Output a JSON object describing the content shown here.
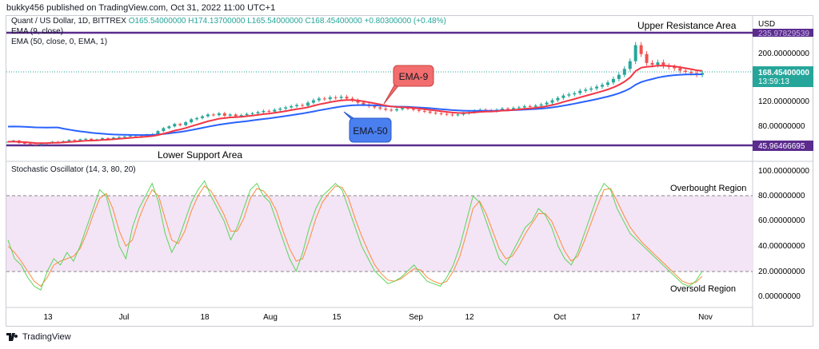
{
  "header": {
    "publisher_line": "bukky456 published on TradingView.com, Oct 31, 2022 11:00 UTC+1"
  },
  "legend": {
    "symbol": "Quant / US Dollar, 1D, BITTREX",
    "o": "O165.54000000",
    "h": "H174.13700000",
    "l": "L165.54000000",
    "c": "C168.45400000",
    "change": "+0.80300000 (+0.48%)",
    "ema9": "EMA (9, close)",
    "ema50": "EMA (50, close, 0, EMA, 1)",
    "stoch": "Stochastic Oscillator (14, 3, 80, 20)"
  },
  "currency": "USD",
  "price_axis": {
    "ticks": [
      "200.00000000",
      "160.00000000",
      "120.00000000",
      "80.00000000"
    ],
    "partial_top": "235.97829539",
    "last_price": "168.45400000",
    "countdown": "13:59:13",
    "support_price": "45.96466695"
  },
  "stoch_axis": {
    "ticks": [
      "100.00000000",
      "80.00000000",
      "60.00000000",
      "40.00000000",
      "20.00000000",
      "0.00000000"
    ]
  },
  "time_axis": {
    "labels": [
      "13",
      "Jul",
      "18",
      "Aug",
      "15",
      "Sep",
      "12",
      "Oct",
      "17",
      "Nov"
    ]
  },
  "annotations": {
    "upper": "Upper Resistance Area",
    "lower": "Lower Support Area",
    "ema9": "EMA-9",
    "ema50": "EMA-50",
    "overbought": "Overbought Region",
    "oversold": "Oversold Region"
  },
  "colors": {
    "up": "#26a69a",
    "down": "#ef5350",
    "ema9": "#f23645",
    "ema50": "#2962ff",
    "level": "#5b2c8e",
    "stoch_k": "#5ad55a",
    "stoch_d": "#ff8a3d",
    "band": "#f3e5f5"
  },
  "footer": {
    "brand": "TradingView"
  },
  "chart_data": {
    "type": "candlestick",
    "price_levels": {
      "upper_resistance": 235.97829539,
      "lower_support": 45.96466695,
      "last": 168.454
    },
    "closes": [
      52,
      54,
      50,
      49,
      48,
      47,
      49,
      50,
      52,
      51,
      53,
      55,
      54,
      56,
      57,
      55,
      56,
      58,
      57,
      59,
      60,
      61,
      62,
      63,
      62,
      64,
      65,
      70,
      75,
      78,
      82,
      80,
      85,
      90,
      92,
      95,
      98,
      97,
      100,
      96,
      98,
      95,
      97,
      99,
      100,
      102,
      104,
      103,
      106,
      108,
      110,
      112,
      114,
      113,
      118,
      122,
      125,
      124,
      127,
      126,
      128,
      125,
      122,
      118,
      115,
      112,
      110,
      108,
      106,
      105,
      107,
      109,
      108,
      106,
      104,
      103,
      101,
      100,
      99,
      98,
      97,
      98,
      100,
      102,
      104,
      106,
      105,
      104,
      106,
      108,
      107,
      109,
      110,
      112,
      111,
      113,
      115,
      118,
      122,
      126,
      130,
      132,
      134,
      138,
      140,
      142,
      145,
      148,
      152,
      158,
      165,
      175,
      188,
      215,
      200,
      185,
      182,
      186,
      180,
      178,
      176,
      172,
      170,
      168,
      165,
      168
    ],
    "ema9_end": 170,
    "ema50_end": 148,
    "stoch_k": [
      45,
      30,
      25,
      15,
      8,
      5,
      20,
      30,
      25,
      35,
      28,
      40,
      55,
      70,
      85,
      80,
      60,
      40,
      30,
      55,
      70,
      80,
      90,
      75,
      50,
      35,
      45,
      60,
      75,
      85,
      92,
      80,
      70,
      60,
      45,
      55,
      70,
      85,
      90,
      80,
      75,
      60,
      45,
      30,
      20,
      35,
      55,
      70,
      80,
      85,
      90,
      85,
      70,
      55,
      40,
      30,
      20,
      15,
      10,
      12,
      15,
      20,
      25,
      18,
      12,
      10,
      8,
      15,
      25,
      40,
      60,
      80,
      75,
      60,
      45,
      30,
      25,
      35,
      45,
      55,
      60,
      70,
      65,
      55,
      40,
      30,
      25,
      35,
      50,
      65,
      80,
      90,
      85,
      70,
      60,
      50,
      45,
      40,
      35,
      30,
      25,
      20,
      15,
      10,
      8,
      12,
      20
    ],
    "stoch_d": [
      40,
      35,
      28,
      20,
      12,
      8,
      15,
      25,
      28,
      30,
      32,
      38,
      50,
      65,
      78,
      82,
      70,
      52,
      40,
      45,
      62,
      75,
      85,
      80,
      62,
      45,
      42,
      52,
      68,
      80,
      88,
      84,
      75,
      65,
      52,
      52,
      62,
      78,
      86,
      84,
      78,
      68,
      52,
      38,
      28,
      30,
      45,
      62,
      75,
      82,
      88,
      87,
      78,
      62,
      48,
      36,
      25,
      18,
      13,
      12,
      14,
      18,
      22,
      21,
      15,
      12,
      10,
      12,
      20,
      32,
      50,
      70,
      76,
      66,
      52,
      38,
      30,
      32,
      40,
      50,
      58,
      66,
      66,
      60,
      48,
      36,
      28,
      32,
      44,
      58,
      72,
      85,
      86,
      76,
      65,
      55,
      48,
      42,
      37,
      32,
      27,
      22,
      17,
      12,
      10,
      11,
      16
    ]
  }
}
